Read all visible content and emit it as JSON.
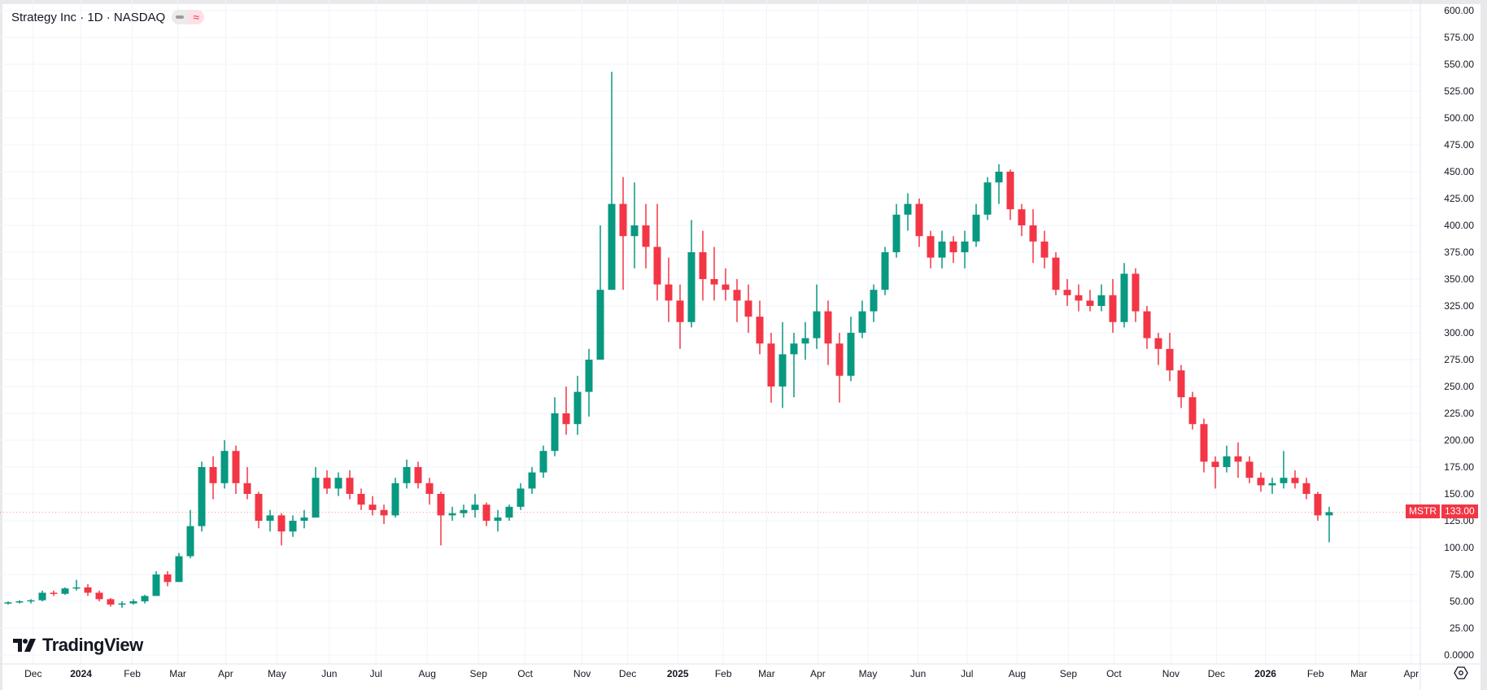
{
  "header": {
    "title": "Strategy Inc · 1D · NASDAQ",
    "pill_icon_left": "minus-icon",
    "pill_icon_right": "≈"
  },
  "logo": {
    "text": "TradingView"
  },
  "price_tag": {
    "symbol": "MSTR",
    "value": "133.00"
  },
  "settings_icon": "gear-icon",
  "colors": {
    "up": "#089981",
    "down": "#f23645",
    "grid": "#f0f3fa"
  },
  "chart_data": {
    "type": "candlestick",
    "title": "Strategy Inc · 1D · NASDAQ",
    "symbol": "MSTR",
    "last_price": 133.0,
    "ylim": [
      0,
      600
    ],
    "y_ticks": [
      "0.0000",
      "25.00",
      "50.00",
      "75.00",
      "100.00",
      "125.00",
      "150.00",
      "175.00",
      "200.00",
      "225.00",
      "250.00",
      "275.00",
      "300.00",
      "325.00",
      "350.00",
      "375.00",
      "400.00",
      "425.00",
      "450.00",
      "475.00",
      "500.00",
      "525.00",
      "550.00",
      "575.00",
      "600.00"
    ],
    "x_ticks": [
      {
        "label": "Dec",
        "week": 2.2
      },
      {
        "label": "2024",
        "week": 6.4
      },
      {
        "label": "Feb",
        "week": 10.9
      },
      {
        "label": "Mar",
        "week": 14.9
      },
      {
        "label": "Apr",
        "week": 19.1
      },
      {
        "label": "May",
        "week": 23.6
      },
      {
        "label": "Jun",
        "week": 28.2
      },
      {
        "label": "Jul",
        "week": 32.3
      },
      {
        "label": "Aug",
        "week": 36.8
      },
      {
        "label": "Sep",
        "week": 41.3
      },
      {
        "label": "Oct",
        "week": 45.4
      },
      {
        "label": "Nov",
        "week": 50.4
      },
      {
        "label": "Dec",
        "week": 54.4
      },
      {
        "label": "2025",
        "week": 58.8
      },
      {
        "label": "Feb",
        "week": 62.8
      },
      {
        "label": "Mar",
        "week": 66.6
      },
      {
        "label": "Apr",
        "week": 71.1
      },
      {
        "label": "May",
        "week": 75.5
      },
      {
        "label": "Jun",
        "week": 79.9
      },
      {
        "label": "Jul",
        "week": 84.2
      },
      {
        "label": "Aug",
        "week": 88.6
      },
      {
        "label": "Sep",
        "week": 93.1
      },
      {
        "label": "Oct",
        "week": 97.1
      },
      {
        "label": "Nov",
        "week": 102.1
      },
      {
        "label": "Dec",
        "week": 106.1
      },
      {
        "label": "2026",
        "week": 110.4
      },
      {
        "label": "Feb",
        "week": 114.8
      },
      {
        "label": "Mar",
        "week": 118.6
      },
      {
        "label": "Apr",
        "week": 123.2
      }
    ],
    "ohlc_note": "approximate weekly aggregation [open, high, low, close], starting week of Nov 13 2023",
    "ohlc": [
      [
        48,
        50,
        47,
        49
      ],
      [
        49,
        51,
        48,
        50
      ],
      [
        50,
        52,
        48,
        51
      ],
      [
        51,
        60,
        50,
        58
      ],
      [
        58,
        60,
        55,
        57
      ],
      [
        57,
        63,
        56,
        62
      ],
      [
        62,
        70,
        60,
        63
      ],
      [
        63,
        66,
        55,
        58
      ],
      [
        58,
        60,
        50,
        52
      ],
      [
        52,
        53,
        45,
        47
      ],
      [
        47,
        50,
        44,
        48
      ],
      [
        48,
        52,
        47,
        50
      ],
      [
        50,
        56,
        48,
        55
      ],
      [
        55,
        78,
        55,
        75
      ],
      [
        75,
        78,
        64,
        68
      ],
      [
        68,
        95,
        68,
        92
      ],
      [
        92,
        135,
        90,
        120
      ],
      [
        120,
        180,
        115,
        175
      ],
      [
        175,
        185,
        145,
        160
      ],
      [
        160,
        200,
        155,
        190
      ],
      [
        190,
        195,
        150,
        160
      ],
      [
        160,
        175,
        145,
        150
      ],
      [
        150,
        152,
        118,
        125
      ],
      [
        125,
        135,
        115,
        130
      ],
      [
        130,
        132,
        102,
        115
      ],
      [
        115,
        130,
        110,
        125
      ],
      [
        125,
        135,
        118,
        128
      ],
      [
        128,
        175,
        128,
        165
      ],
      [
        165,
        172,
        150,
        155
      ],
      [
        155,
        170,
        148,
        165
      ],
      [
        165,
        172,
        145,
        150
      ],
      [
        150,
        155,
        135,
        140
      ],
      [
        140,
        148,
        130,
        135
      ],
      [
        135,
        140,
        122,
        130
      ],
      [
        130,
        165,
        128,
        160
      ],
      [
        160,
        182,
        155,
        175
      ],
      [
        175,
        180,
        155,
        160
      ],
      [
        160,
        165,
        140,
        150
      ],
      [
        150,
        152,
        102,
        130
      ],
      [
        130,
        138,
        125,
        132
      ],
      [
        132,
        140,
        128,
        135
      ],
      [
        135,
        150,
        128,
        140
      ],
      [
        140,
        142,
        120,
        125
      ],
      [
        125,
        135,
        115,
        128
      ],
      [
        128,
        140,
        125,
        138
      ],
      [
        138,
        160,
        135,
        155
      ],
      [
        155,
        175,
        150,
        170
      ],
      [
        170,
        195,
        165,
        190
      ],
      [
        190,
        240,
        185,
        225
      ],
      [
        225,
        250,
        205,
        215
      ],
      [
        215,
        260,
        205,
        245
      ],
      [
        245,
        285,
        222,
        275
      ],
      [
        275,
        400,
        275,
        340
      ],
      [
        340,
        543,
        340,
        420
      ],
      [
        420,
        445,
        340,
        390
      ],
      [
        390,
        440,
        360,
        400
      ],
      [
        400,
        420,
        360,
        380
      ],
      [
        380,
        420,
        330,
        345
      ],
      [
        345,
        370,
        310,
        330
      ],
      [
        330,
        345,
        285,
        310
      ],
      [
        310,
        405,
        305,
        375
      ],
      [
        375,
        395,
        330,
        350
      ],
      [
        350,
        380,
        330,
        345
      ],
      [
        345,
        360,
        330,
        340
      ],
      [
        340,
        350,
        310,
        330
      ],
      [
        330,
        345,
        300,
        315
      ],
      [
        315,
        330,
        280,
        290
      ],
      [
        290,
        300,
        235,
        250
      ],
      [
        250,
        310,
        230,
        280
      ],
      [
        280,
        300,
        240,
        290
      ],
      [
        290,
        310,
        275,
        295
      ],
      [
        295,
        345,
        285,
        320
      ],
      [
        320,
        330,
        270,
        290
      ],
      [
        290,
        300,
        235,
        260
      ],
      [
        260,
        315,
        255,
        300
      ],
      [
        300,
        330,
        295,
        320
      ],
      [
        320,
        345,
        310,
        340
      ],
      [
        340,
        380,
        335,
        375
      ],
      [
        375,
        420,
        370,
        410
      ],
      [
        410,
        430,
        395,
        420
      ],
      [
        420,
        425,
        380,
        390
      ],
      [
        390,
        395,
        360,
        370
      ],
      [
        370,
        395,
        360,
        385
      ],
      [
        385,
        390,
        365,
        375
      ],
      [
        375,
        395,
        360,
        385
      ],
      [
        385,
        420,
        380,
        410
      ],
      [
        410,
        445,
        405,
        440
      ],
      [
        440,
        457,
        420,
        450
      ],
      [
        450,
        452,
        405,
        415
      ],
      [
        415,
        420,
        390,
        400
      ],
      [
        400,
        415,
        365,
        385
      ],
      [
        385,
        395,
        360,
        370
      ],
      [
        370,
        375,
        335,
        340
      ],
      [
        340,
        350,
        325,
        335
      ],
      [
        335,
        345,
        320,
        330
      ],
      [
        330,
        340,
        320,
        325
      ],
      [
        325,
        345,
        320,
        335
      ],
      [
        335,
        350,
        300,
        310
      ],
      [
        310,
        365,
        305,
        355
      ],
      [
        355,
        360,
        310,
        320
      ],
      [
        320,
        325,
        285,
        295
      ],
      [
        295,
        300,
        270,
        285
      ],
      [
        285,
        300,
        255,
        265
      ],
      [
        265,
        270,
        230,
        240
      ],
      [
        240,
        245,
        210,
        215
      ],
      [
        215,
        220,
        170,
        180
      ],
      [
        180,
        185,
        155,
        175
      ],
      [
        175,
        195,
        170,
        185
      ],
      [
        185,
        198,
        165,
        180
      ],
      [
        180,
        185,
        160,
        165
      ],
      [
        165,
        170,
        152,
        158
      ],
      [
        158,
        165,
        150,
        160
      ],
      [
        160,
        190,
        155,
        165
      ],
      [
        165,
        172,
        155,
        160
      ],
      [
        160,
        165,
        145,
        150
      ],
      [
        150,
        152,
        125,
        130
      ],
      [
        130,
        138,
        105,
        133
      ]
    ]
  }
}
